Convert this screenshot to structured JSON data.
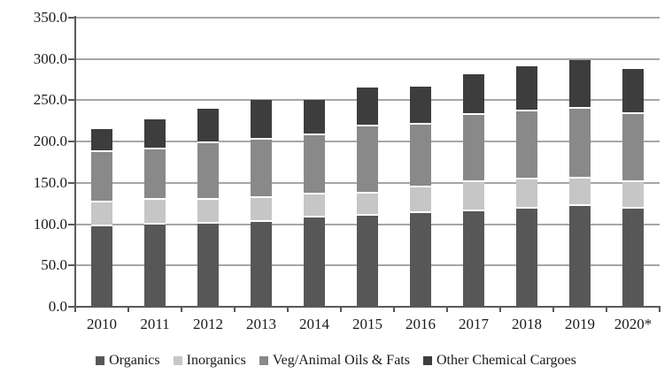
{
  "chart_data": {
    "type": "bar",
    "stacked": true,
    "title": "",
    "xlabel": "",
    "ylabel": "",
    "categories": [
      "2010",
      "2011",
      "2012",
      "2013",
      "2014",
      "2015",
      "2016",
      "2017",
      "2018",
      "2019",
      "2020*"
    ],
    "series": [
      {
        "name": "Organics",
        "color": "#575757",
        "values": [
          97,
          100,
          101,
          103,
          108,
          110,
          113,
          116,
          119,
          122,
          119
        ]
      },
      {
        "name": "Inorganics",
        "color": "#c6c6c6",
        "values": [
          29,
          29,
          28,
          29,
          28,
          27,
          31,
          35,
          35,
          33,
          32
        ]
      },
      {
        "name": "Veg/Animal Oils & Fats",
        "color": "#898989",
        "values": [
          61,
          62,
          69,
          70,
          72,
          81,
          76,
          81,
          83,
          85,
          82
        ]
      },
      {
        "name": "Other Chemical Cargoes",
        "color": "#3d3d3d",
        "values": [
          28,
          36,
          42,
          49,
          42,
          47,
          47,
          49,
          54,
          59,
          55
        ]
      }
    ],
    "totals": [
      215,
      227,
      240,
      251,
      250,
      265,
      267,
      281,
      291,
      299,
      288
    ],
    "ylim": [
      0,
      350
    ],
    "ytick_step": 50,
    "ytick_labels": [
      "0.0",
      "50.0",
      "100.0",
      "150.0",
      "200.0",
      "250.0",
      "300.0",
      "350.0"
    ],
    "grid": true,
    "legend_position": "bottom"
  },
  "colors": {
    "background": "#ffffff",
    "gridline": "#a6a6a6",
    "axis": "#595959",
    "tick": "#595959",
    "text": "#1a1a1a",
    "segment_separator": "#ffffff"
  }
}
